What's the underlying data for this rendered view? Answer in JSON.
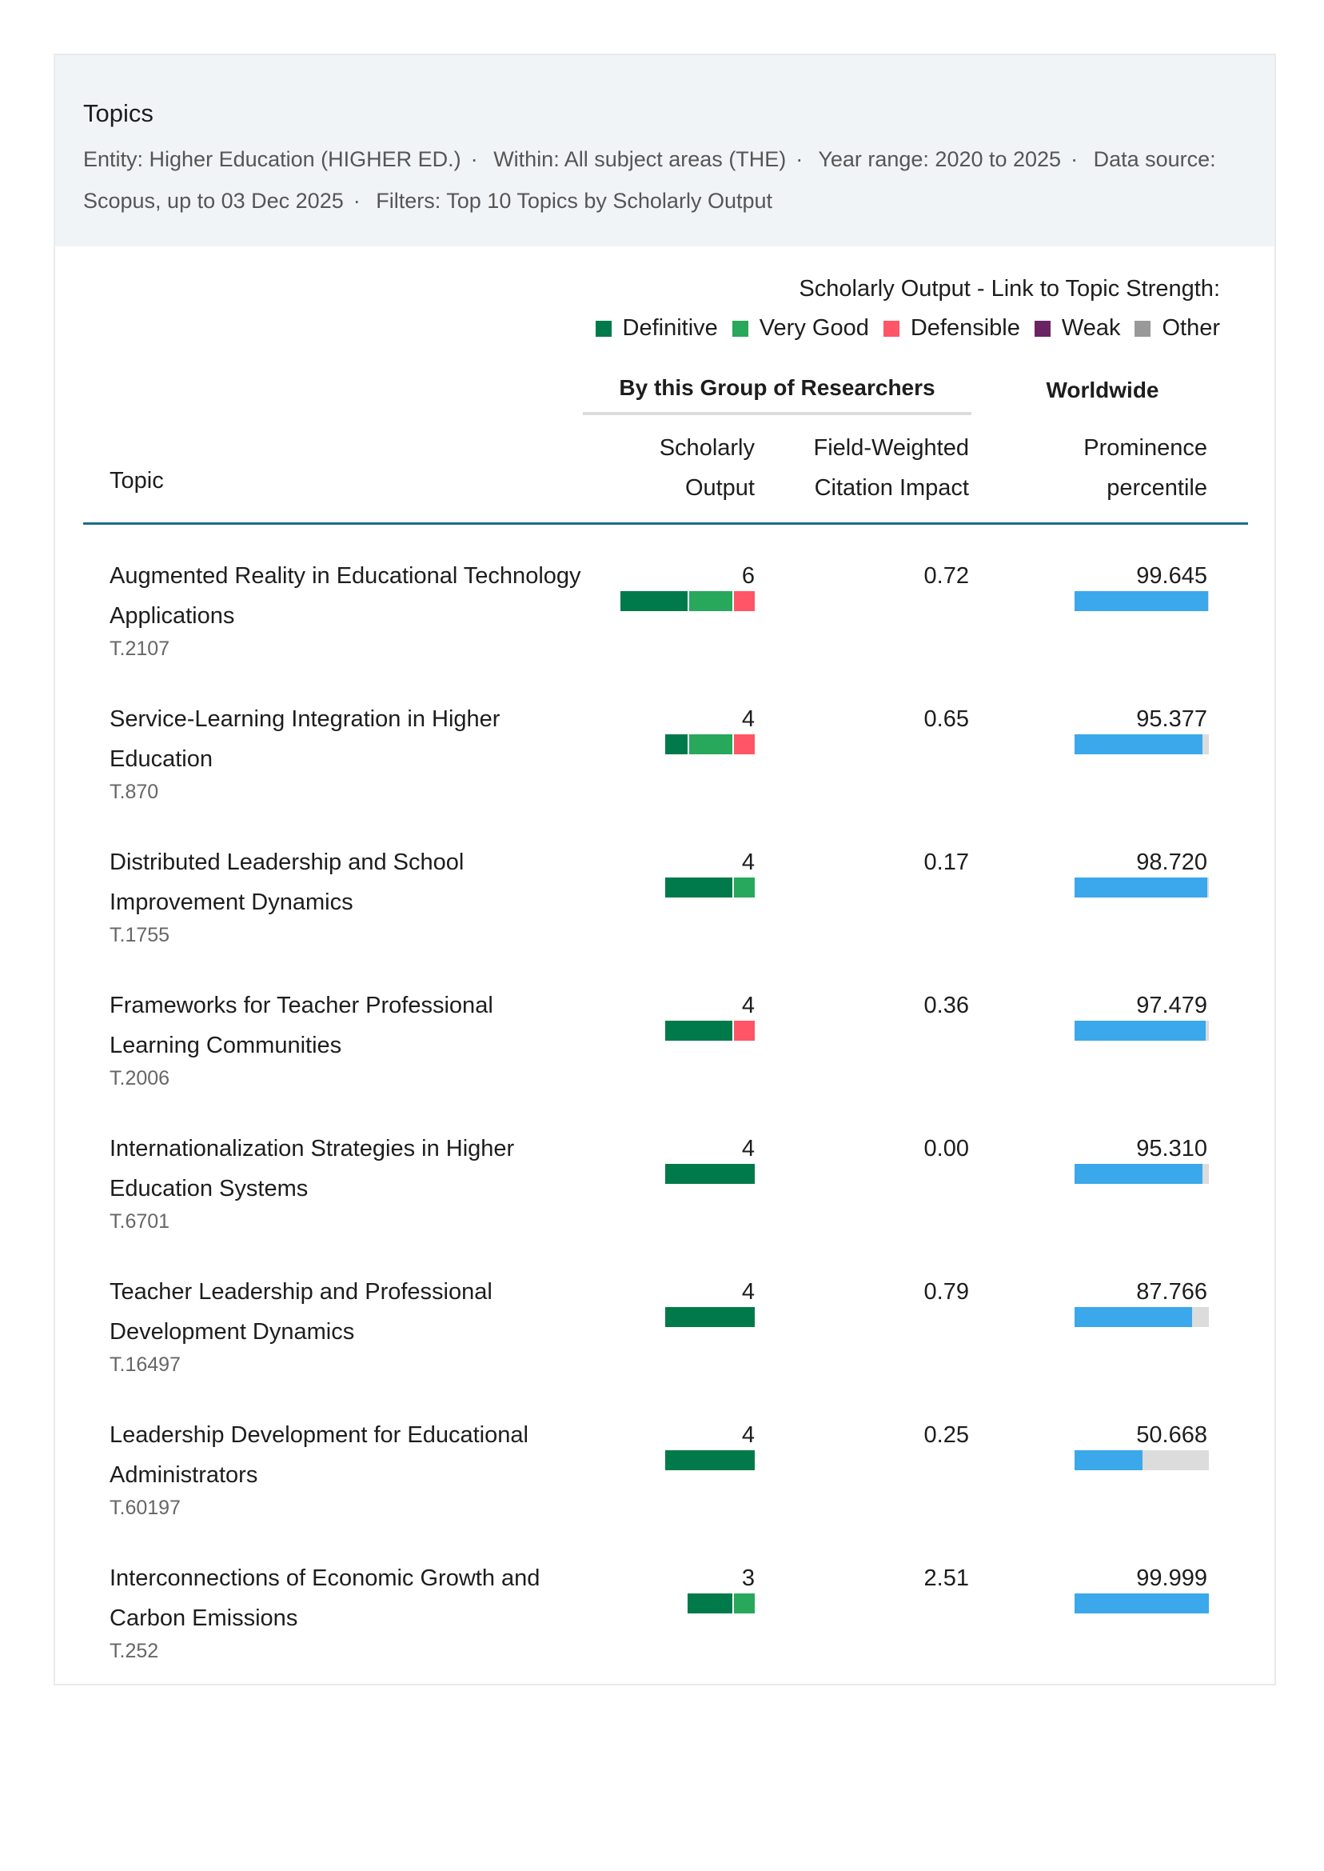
{
  "header": {
    "title": "Topics",
    "meta": [
      "Entity: Higher Education (HIGHER ED.)",
      "Within: All subject areas (THE)",
      "Year range: 2020 to 2025",
      "Data source: Scopus, up to 03 Dec 2025",
      "Filters: Top 10 Topics by Scholarly Output"
    ],
    "separator": "·"
  },
  "legend": {
    "title": "Scholarly Output - Link to Topic Strength:",
    "items": [
      {
        "label": "Definitive",
        "color": "#007a4a"
      },
      {
        "label": "Very Good",
        "color": "#27a85b"
      },
      {
        "label": "Defensible",
        "color": "#ff5566"
      },
      {
        "label": "Weak",
        "color": "#6a2463"
      },
      {
        "label": "Other",
        "color": "#999999"
      }
    ]
  },
  "columns": {
    "group": "By this Group of Researchers",
    "worldwide": "Worldwide",
    "topic": "Topic",
    "so1": "Scholarly",
    "so2": "Output",
    "fw1": "Field-Weighted",
    "fw2": "Citation Impact",
    "pp1": "Prominence",
    "pp2": "percentile"
  },
  "rows": [
    {
      "name": "Augmented Reality in Educational Technology Applications",
      "code": "T.2107",
      "output": "6",
      "fwci": "0.72",
      "prominence": "99.645",
      "strength": [
        3,
        2,
        1,
        0,
        0
      ]
    },
    {
      "name": "Service-Learning Integration in Higher Education",
      "code": "T.870",
      "output": "4",
      "fwci": "0.65",
      "prominence": "95.377",
      "strength": [
        1,
        2,
        1,
        0,
        0
      ]
    },
    {
      "name": "Distributed Leadership and School Improvement Dynamics",
      "code": "T.1755",
      "output": "4",
      "fwci": "0.17",
      "prominence": "98.720",
      "strength": [
        3,
        1,
        0,
        0,
        0
      ]
    },
    {
      "name": "Frameworks for Teacher Professional Learning Communities",
      "code": "T.2006",
      "output": "4",
      "fwci": "0.36",
      "prominence": "97.479",
      "strength": [
        3,
        0,
        1,
        0,
        0
      ]
    },
    {
      "name": "Internationalization Strategies in Higher Education Systems",
      "code": "T.6701",
      "output": "4",
      "fwci": "0.00",
      "prominence": "95.310",
      "strength": [
        4,
        0,
        0,
        0,
        0
      ]
    },
    {
      "name": "Teacher Leadership and Professional Development Dynamics",
      "code": "T.16497",
      "output": "4",
      "fwci": "0.79",
      "prominence": "87.766",
      "strength": [
        4,
        0,
        0,
        0,
        0
      ]
    },
    {
      "name": "Leadership Development for Educational Administrators",
      "code": "T.60197",
      "output": "4",
      "fwci": "0.25",
      "prominence": "50.668",
      "strength": [
        4,
        0,
        0,
        0,
        0
      ]
    },
    {
      "name": "Interconnections of Economic Growth and Carbon Emissions",
      "code": "T.252",
      "output": "3",
      "fwci": "2.51",
      "prominence": "99.999",
      "strength": [
        2,
        1,
        0,
        0,
        0
      ]
    }
  ]
}
